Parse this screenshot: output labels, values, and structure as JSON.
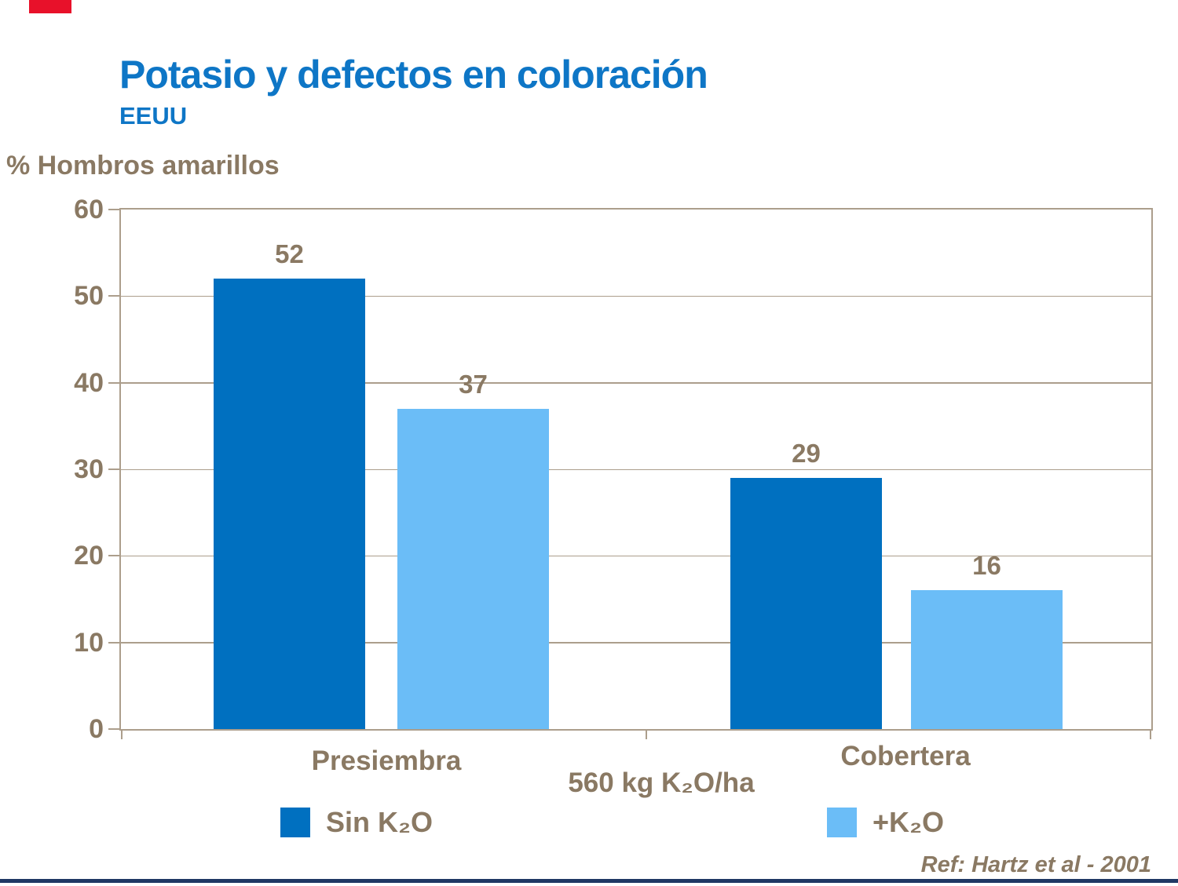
{
  "colors": {
    "background": "#FFFFFF",
    "title_blue": "#0E76C6",
    "text_brown": "#8A7963",
    "axis_tan": "#AC9E8C",
    "bar_dark_blue": "#0070C0",
    "bar_light_blue": "#6BBDF7",
    "red_accent": "#E8112A",
    "bottom_bar_navy": "#1F3864"
  },
  "header": {
    "title": "Potasio y defectos en coloración",
    "subtitle": "EEUU"
  },
  "chart_data": {
    "type": "bar",
    "title": "Potasio y defectos en coloración",
    "ylabel": "% Hombros amarillos",
    "xlabel": "",
    "ylim": [
      0,
      60
    ],
    "yticks": [
      0,
      10,
      20,
      30,
      40,
      50,
      60
    ],
    "grid": true,
    "categories": [
      "Presiembra",
      "Cobertera"
    ],
    "center_note": "560 kg K₂O/ha",
    "series": [
      {
        "name": "Sin K₂O",
        "color": "#0070C0",
        "values": [
          52,
          29
        ]
      },
      {
        "name": "+K₂O",
        "color": "#6BBDF7",
        "values": [
          37,
          16
        ]
      }
    ],
    "value_labels": [
      52,
      37,
      29,
      16
    ],
    "legend_position": "bottom"
  },
  "footer": {
    "reference": "Ref: Hartz et al - 2001"
  }
}
